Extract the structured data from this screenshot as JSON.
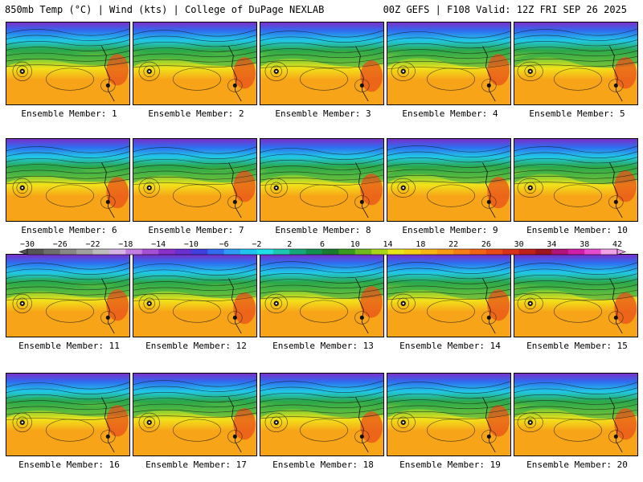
{
  "header": {
    "left_title": "850mb Temp (°C) | Wind (kts) | College of DuPage NEXLAB",
    "right_title": "00Z GEFS | F108 Valid: 12Z FRI SEP 26 2025"
  },
  "panels": [
    {
      "label": "Ensemble Member: 1"
    },
    {
      "label": "Ensemble Member: 2"
    },
    {
      "label": "Ensemble Member: 3"
    },
    {
      "label": "Ensemble Member: 4"
    },
    {
      "label": "Ensemble Member: 5"
    },
    {
      "label": "Ensemble Member: 6"
    },
    {
      "label": "Ensemble Member: 7"
    },
    {
      "label": "Ensemble Member: 8"
    },
    {
      "label": "Ensemble Member: 9"
    },
    {
      "label": "Ensemble Member: 10"
    },
    {
      "label": "Ensemble Member: 11"
    },
    {
      "label": "Ensemble Member: 12"
    },
    {
      "label": "Ensemble Member: 13"
    },
    {
      "label": "Ensemble Member: 14"
    },
    {
      "label": "Ensemble Member: 15"
    },
    {
      "label": "Ensemble Member: 16"
    },
    {
      "label": "Ensemble Member: 17"
    },
    {
      "label": "Ensemble Member: 18"
    },
    {
      "label": "Ensemble Member: 19"
    },
    {
      "label": "Ensemble Member: 20"
    }
  ],
  "colorbar": {
    "labels": [
      "−30",
      "−26",
      "−22",
      "−18",
      "−14",
      "−10",
      "−6",
      "−2",
      "2",
      "6",
      "10",
      "14",
      "18",
      "22",
      "26",
      "30",
      "34",
      "38",
      "42"
    ],
    "colors": [
      "#555555",
      "#6e6e6e",
      "#878787",
      "#a0a0a0",
      "#bdbdbd",
      "#d7b4e8",
      "#c27ee0",
      "#a64fd6",
      "#8a2fc9",
      "#6a2fd0",
      "#3f3fe0",
      "#2f6cf0",
      "#2d9cf4",
      "#21c4f0",
      "#1fe0e6",
      "#1ec7b0",
      "#17a87a",
      "#119050",
      "#1a7a2e",
      "#3a9a1e",
      "#6fba1c",
      "#a9d61a",
      "#e8e61a",
      "#f5cf14",
      "#f7b514",
      "#f79a14",
      "#f57f14",
      "#f06414",
      "#e84a18",
      "#d8321a",
      "#c0201a",
      "#a0141e",
      "#b0147a",
      "#d01ea8",
      "#e84ad0",
      "#f2a0e8"
    ]
  },
  "colors": {
    "polar": "#7a2fc8",
    "blue": "#2f6cf0",
    "cyan": "#20c8e8",
    "green": "#2aa84a",
    "lime": "#8cd030",
    "yellow": "#f2e21a",
    "orange": "#f7a418",
    "hot": "#e8501a"
  }
}
